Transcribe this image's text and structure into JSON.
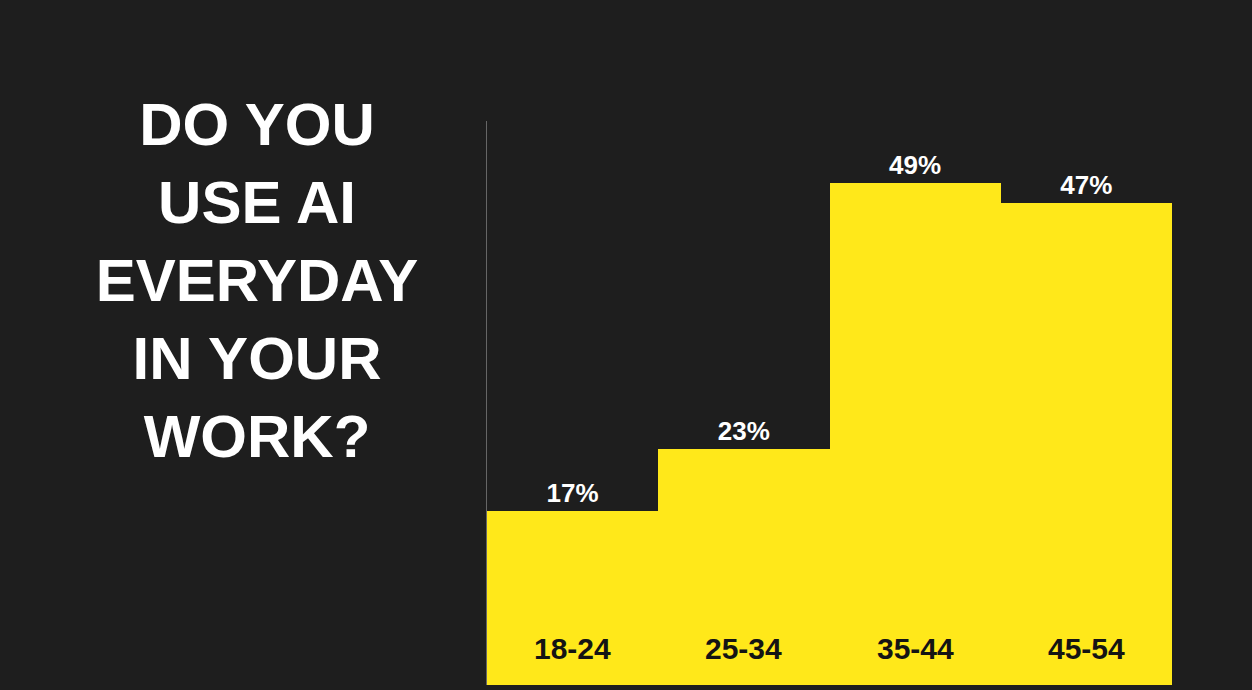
{
  "chart_data": {
    "type": "bar",
    "title": "DO YOU USE AI EVERYDAY IN YOUR WORK?",
    "categories": [
      "18-24",
      "25-34",
      "35-44",
      "45-54"
    ],
    "values": [
      17,
      23,
      49,
      47
    ],
    "value_labels": [
      "17%",
      "23%",
      "49%",
      "47%"
    ],
    "data_labels": true,
    "color": "#ffe81a",
    "ylim": [
      0,
      55
    ],
    "grid": false,
    "tick_labels": false
  }
}
